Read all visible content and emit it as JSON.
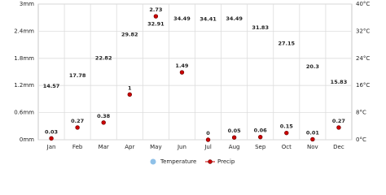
{
  "chart_data": {
    "type": "line",
    "categories": [
      "Jan",
      "Feb",
      "Mar",
      "Apr",
      "May",
      "Jun",
      "Jul",
      "Aug",
      "Sep",
      "Oct",
      "Nov",
      "Dec"
    ],
    "series": [
      {
        "name": "Temperature",
        "color": "#8fc1e8",
        "axis": "y2",
        "marker": false,
        "values": [
          14.57,
          17.78,
          22.82,
          29.82,
          32.91,
          34.49,
          34.41,
          34.49,
          31.83,
          27.15,
          20.3,
          15.83
        ]
      },
      {
        "name": "Precip",
        "color": "#cc0000",
        "marker": true,
        "values": [
          0.03,
          0.27,
          0.38,
          1,
          2.73,
          1.49,
          0,
          0.05,
          0.06,
          0.15,
          0.01,
          0.27
        ]
      }
    ],
    "ylim": [
      0,
      3
    ],
    "yticks": [
      {
        "value": 0,
        "label": "0mm"
      },
      {
        "value": 0.6,
        "label": "0.6mm"
      },
      {
        "value": 1.2,
        "label": "1.2mm"
      },
      {
        "value": 1.8,
        "label": "1.8mm"
      },
      {
        "value": 2.4,
        "label": "2.4mm"
      },
      {
        "value": 3,
        "label": "3mm"
      }
    ],
    "y2lim": [
      0,
      40
    ],
    "y2ticks": [
      {
        "value": 0,
        "label": "0°C"
      },
      {
        "value": 8,
        "label": "8°C"
      },
      {
        "value": 16,
        "label": "16°C"
      },
      {
        "value": 24,
        "label": "24°C"
      },
      {
        "value": 32,
        "label": "32°C"
      },
      {
        "value": 40,
        "label": "40°C"
      }
    ],
    "grid": true
  }
}
